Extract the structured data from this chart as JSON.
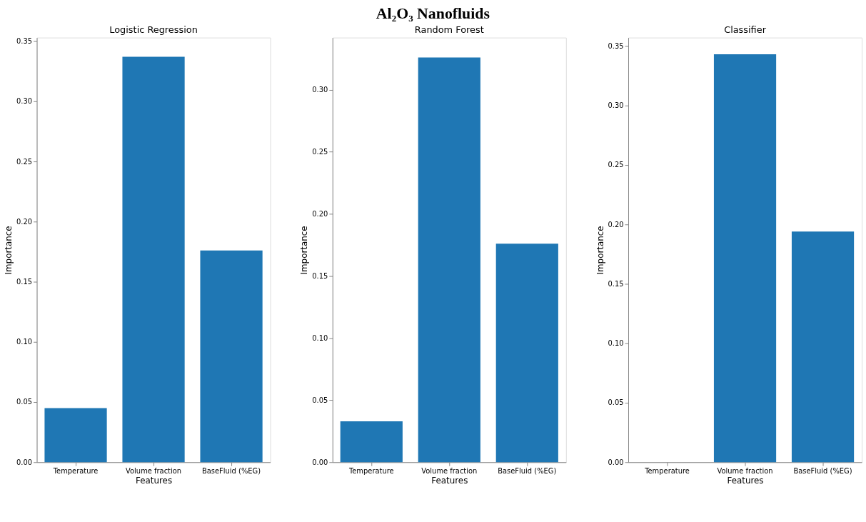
{
  "chart_data": [
    {
      "type": "bar",
      "title": "Logistic Regression",
      "annotations": [
        "Al₂O₃ Nanofluids"
      ],
      "xlabel": "Features",
      "ylabel": "Importance",
      "categories": [
        "Temperature",
        "Volume fraction",
        "BaseFluid (%EG)"
      ],
      "values": [
        0.045,
        0.337,
        0.176
      ],
      "color": "#1f77b4",
      "ylim": [
        0,
        0.353
      ],
      "yticks": [
        {
          "value": 0,
          "label": "0.00"
        },
        0.05,
        {
          "value": 0.1,
          "label": "0.10"
        },
        0.15,
        {
          "value": 0.2,
          "label": "0.20"
        },
        0.25,
        {
          "value": 0.3,
          "label": "0.30"
        },
        0.35
      ],
      "grid": false
    },
    {
      "type": "bar",
      "title": "Random Forest",
      "xlabel": "Features",
      "ylabel": "Importance",
      "categories": [
        "Temperature",
        "Volume fraction",
        "BaseFluid (%EG)"
      ],
      "values": [
        0.033,
        0.326,
        0.176
      ],
      "color": "#1f77b4",
      "ylim": [
        0,
        0.342
      ],
      "yticks": [
        {
          "value": 0,
          "label": "0.00"
        },
        0.05,
        {
          "value": 0.1,
          "label": "0.10"
        },
        0.15,
        {
          "value": 0.2,
          "label": "0.20"
        },
        0.25,
        {
          "value": 0.3,
          "label": "0.30"
        }
      ],
      "grid": false
    },
    {
      "type": "bar",
      "title": "Classifier",
      "xlabel": "Features",
      "ylabel": "Importance",
      "categories": [
        "Temperature",
        "Volume fraction",
        "BaseFluid (%EG)"
      ],
      "values": [
        0,
        0.343,
        0.194
      ],
      "color": "#1f77b4",
      "ylim": [
        0,
        0.357
      ],
      "yticks": [
        {
          "value": 0,
          "label": "0.00"
        },
        0.05,
        {
          "value": 0.1,
          "label": "0.10"
        },
        0.15,
        {
          "value": 0.2,
          "label": "0.20"
        },
        0.25,
        {
          "value": 0.3,
          "label": "0.30"
        },
        0.35
      ],
      "grid": false
    }
  ]
}
